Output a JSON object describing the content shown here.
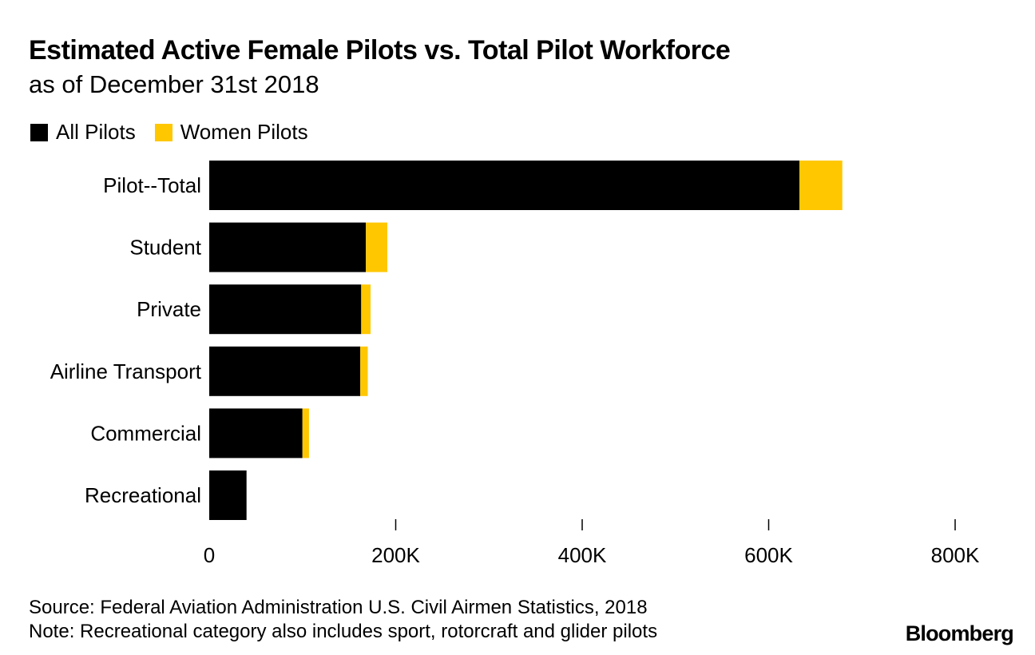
{
  "header": {
    "title": "Estimated Active Female Pilots vs. Total Pilot Workforce",
    "subtitle": "as of December 31st 2018"
  },
  "legend": {
    "all_pilots": "All Pilots",
    "women_pilots": "Women Pilots"
  },
  "colors": {
    "all_pilots": "#000000",
    "women_pilots": "#FFC700"
  },
  "chart_data": {
    "type": "bar",
    "orientation": "horizontal",
    "stacked": true,
    "title": "Estimated Active Female Pilots vs. Total Pilot Workforce",
    "subtitle": "as of December 31st 2018",
    "categories": [
      "Pilot--Total",
      "Student",
      "Private",
      "Airline Transport",
      "Commercial",
      "Recreational"
    ],
    "series": [
      {
        "name": "All Pilots",
        "values": [
          633000,
          168000,
          163000,
          162000,
          100000,
          40000
        ]
      },
      {
        "name": "Women Pilots",
        "values": [
          46000,
          23000,
          10000,
          8000,
          7000,
          0
        ]
      }
    ],
    "xlim": [
      0,
      800000
    ],
    "xticks": [
      0,
      200000,
      400000,
      600000,
      800000
    ],
    "xtick_labels": [
      "0",
      "200K",
      "400K",
      "600K",
      "800K"
    ],
    "xlabel": "",
    "ylabel": "",
    "grid": false,
    "legend_position": "top-left"
  },
  "footer": {
    "source": "Source: Federal Aviation Administration U.S. Civil Airmen Statistics, 2018",
    "note": "Note: Recreational category also includes sport, rotorcraft and glider pilots"
  },
  "brand": "Bloomberg"
}
